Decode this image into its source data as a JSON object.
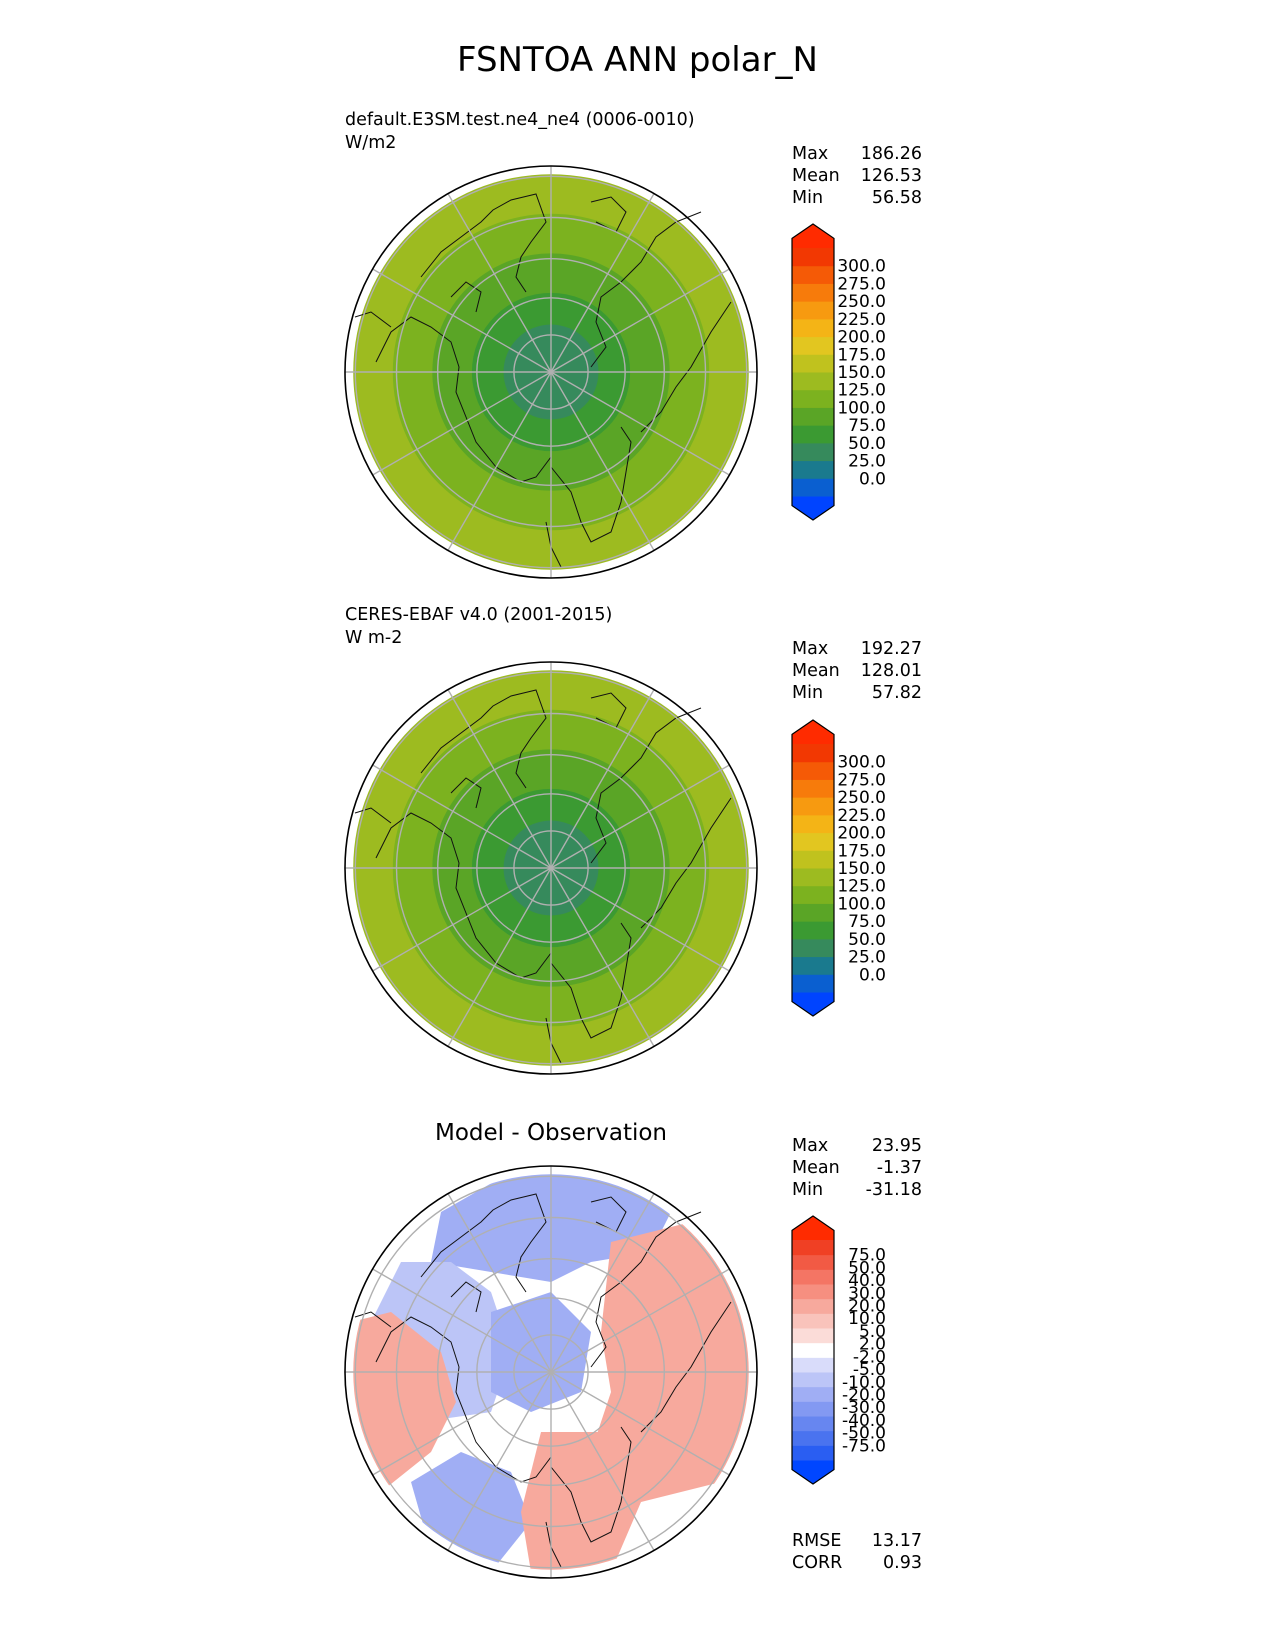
{
  "title": "FSNTOA ANN polar_N",
  "chart_data": [
    {
      "type": "heatmap",
      "projection": "north polar stereographic",
      "title": "default.E3SM.test.ne4_ne4 (0006-0010)",
      "units": "W/m2",
      "stats": [
        {
          "label": "Max",
          "value": "186.26"
        },
        {
          "label": "Mean",
          "value": "126.53"
        },
        {
          "label": "Min",
          "value": "56.58"
        }
      ],
      "colorbar": {
        "ticks": [
          "300.0",
          "275.0",
          "250.0",
          "225.0",
          "200.0",
          "175.0",
          "150.0",
          "125.0",
          "100.0",
          "75.0",
          "50.0",
          "25.0",
          "0.0"
        ],
        "colors": [
          "#0044ff",
          "#0a5fd0",
          "#1a7a8e",
          "#368a5c",
          "#3b9a32",
          "#5aa526",
          "#7cb21f",
          "#9dbb20",
          "#c0c21e",
          "#e2c620",
          "#f4b416",
          "#f79a10",
          "#f77b0b",
          "#f55a06",
          "#f23802",
          "#ff2b00"
        ]
      },
      "field": {
        "pole_value": 70,
        "rings": [
          {
            "colat_deg": 20,
            "value": 90
          },
          {
            "colat_deg": 30,
            "value": 110
          },
          {
            "colat_deg": 40,
            "value": 140
          },
          {
            "colat_deg": 50,
            "value": 165
          }
        ]
      }
    },
    {
      "type": "heatmap",
      "projection": "north polar stereographic",
      "title": "CERES-EBAF v4.0 (2001-2015)",
      "units": "W m-2",
      "stats": [
        {
          "label": "Max",
          "value": "192.27"
        },
        {
          "label": "Mean",
          "value": "128.01"
        },
        {
          "label": "Min",
          "value": "57.82"
        }
      ],
      "colorbar": {
        "ticks": [
          "300.0",
          "275.0",
          "250.0",
          "225.0",
          "200.0",
          "175.0",
          "150.0",
          "125.0",
          "100.0",
          "75.0",
          "50.0",
          "25.0",
          "0.0"
        ],
        "colors": [
          "#0044ff",
          "#0a5fd0",
          "#1a7a8e",
          "#368a5c",
          "#3b9a32",
          "#5aa526",
          "#7cb21f",
          "#9dbb20",
          "#c0c21e",
          "#e2c620",
          "#f4b416",
          "#f79a10",
          "#f77b0b",
          "#f55a06",
          "#f23802",
          "#ff2b00"
        ]
      },
      "field": {
        "pole_value": 70,
        "rings": [
          {
            "colat_deg": 20,
            "value": 90
          },
          {
            "colat_deg": 30,
            "value": 115
          },
          {
            "colat_deg": 40,
            "value": 145
          },
          {
            "colat_deg": 50,
            "value": 170
          }
        ]
      }
    },
    {
      "type": "heatmap",
      "projection": "north polar stereographic",
      "title": "Model - Observation",
      "stats": [
        {
          "label": "Max",
          "value": "23.95"
        },
        {
          "label": "Mean",
          "value": "-1.37"
        },
        {
          "label": "Min",
          "value": "-31.18"
        }
      ],
      "extra_stats": [
        {
          "label": "RMSE",
          "value": "13.17"
        },
        {
          "label": "CORR",
          "value": "0.93"
        }
      ],
      "colorbar": {
        "ticks": [
          "75.0",
          "50.0",
          "40.0",
          "30.0",
          "20.0",
          "10.0",
          "5.0",
          "2.0",
          "-2.0",
          "-5.0",
          "-10.0",
          "-20.0",
          "-30.0",
          "-40.0",
          "-50.0",
          "-75.0"
        ],
        "colors": [
          "#0046ff",
          "#2a5ef2",
          "#4a73ef",
          "#6786f0",
          "#8399f2",
          "#a0aef4",
          "#bcc5f7",
          "#d9dcfa",
          "#ffffff",
          "#fbdcd8",
          "#f9c3bb",
          "#f7a99d",
          "#f68f80",
          "#f47564",
          "#f25a44",
          "#f04024",
          "#ff2b00"
        ]
      },
      "field": {
        "regions": [
          {
            "id": "atlantic-negative",
            "value": -20
          },
          {
            "id": "pole-negative",
            "value": -12
          },
          {
            "id": "siberia-positive",
            "value": 15
          },
          {
            "id": "canada-positive",
            "value": 12
          },
          {
            "id": "pacific-negative",
            "value": -15
          }
        ]
      }
    }
  ]
}
